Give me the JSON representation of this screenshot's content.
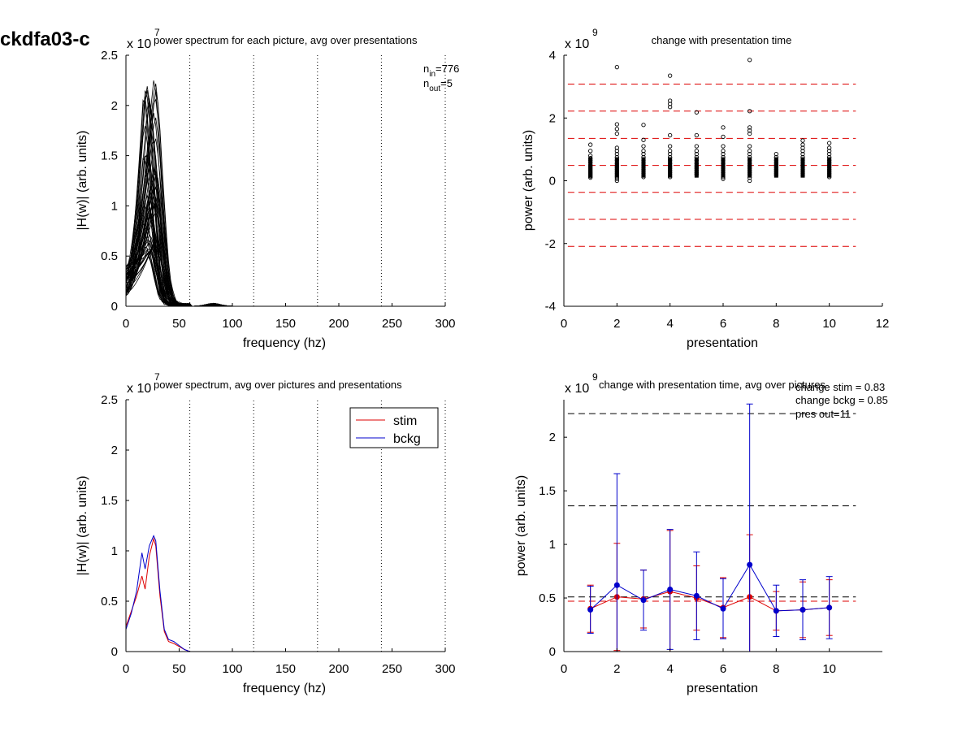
{
  "page_title": "ckdfa03-c",
  "chart_data": [
    {
      "id": "p1",
      "type": "line",
      "title": "power spectrum for each picture, avg over presentations",
      "exponent_label": "x 10",
      "exponent": "7",
      "xlabel": "frequency (hz)",
      "ylabel": "|H(w)| (arb. units)",
      "xlim": [
        0,
        300
      ],
      "ylim": [
        0,
        2.5
      ],
      "xticks": [
        "0",
        "50",
        "100",
        "150",
        "200",
        "250",
        "300"
      ],
      "yticks": [
        "0",
        "0.5",
        "1",
        "1.5",
        "2",
        "2.5"
      ],
      "vlines": [
        60,
        120,
        180,
        240,
        300
      ],
      "annotation_n_in": "n",
      "annotation_n_in_sub": "in",
      "annotation_n_in_val": "=776",
      "annotation_n_out": "n",
      "annotation_n_out_sub": "out",
      "annotation_n_out_val": "=5",
      "series_count": 60,
      "series_color": "#000000",
      "peak_range": [
        0.5,
        2.28
      ],
      "peak_freq_range": [
        16,
        28
      ]
    },
    {
      "id": "p2",
      "type": "scatter",
      "title": "change with presentation time",
      "exponent_label": "x 10",
      "exponent": "9",
      "xlabel": "presentation",
      "ylabel": "power (arb. units)",
      "xlim": [
        0,
        12
      ],
      "ylim": [
        -4,
        4
      ],
      "xticks": [
        "0",
        "2",
        "4",
        "6",
        "8",
        "10",
        "12"
      ],
      "yticks": [
        "-4",
        "-2",
        "0",
        "2",
        "4"
      ],
      "hlines": [
        3.08,
        2.22,
        1.35,
        0.49,
        -0.37,
        -1.23,
        -2.09
      ],
      "hline_color": "#dd0000",
      "points": [
        {
          "x": 1,
          "ys": [
            1.15,
            0.95,
            0.8,
            0.72,
            0.65,
            0.58,
            0.5,
            0.45,
            0.4,
            0.35,
            0.3,
            0.26,
            0.22,
            0.18,
            0.14,
            0.1
          ]
        },
        {
          "x": 2,
          "ys": [
            3.62,
            1.8,
            1.65,
            1.5,
            1.05,
            0.95,
            0.85,
            0.75,
            0.65,
            0.55,
            0.48,
            0.42,
            0.36,
            0.3,
            0.24,
            0.18,
            0.12,
            0.06,
            0.0
          ]
        },
        {
          "x": 3,
          "ys": [
            1.78,
            1.3,
            1.1,
            0.95,
            0.85,
            0.75,
            0.65,
            0.57,
            0.5,
            0.43,
            0.36,
            0.3,
            0.24,
            0.18,
            0.12
          ]
        },
        {
          "x": 4,
          "ys": [
            3.35,
            2.55,
            2.45,
            2.35,
            1.45,
            1.1,
            0.95,
            0.85,
            0.75,
            0.65,
            0.55,
            0.47,
            0.4,
            0.33,
            0.26,
            0.19,
            0.12
          ]
        },
        {
          "x": 5,
          "ys": [
            2.18,
            1.45,
            1.1,
            0.95,
            0.85,
            0.75,
            0.65,
            0.55,
            0.47,
            0.4,
            0.33,
            0.26,
            0.2
          ]
        },
        {
          "x": 6,
          "ys": [
            1.7,
            1.4,
            1.1,
            0.95,
            0.85,
            0.75,
            0.65,
            0.55,
            0.47,
            0.4,
            0.33,
            0.26,
            0.19,
            0.12,
            0.06
          ]
        },
        {
          "x": 7,
          "ys": [
            3.85,
            2.22,
            1.7,
            1.6,
            1.5,
            1.1,
            0.95,
            0.85,
            0.75,
            0.65,
            0.55,
            0.47,
            0.4,
            0.33,
            0.26,
            0.19,
            0.1,
            0.0
          ]
        },
        {
          "x": 8,
          "ys": [
            0.85,
            0.75,
            0.65,
            0.57,
            0.5,
            0.43,
            0.36,
            0.3,
            0.24,
            0.18
          ]
        },
        {
          "x": 9,
          "ys": [
            1.28,
            1.15,
            1.05,
            0.95,
            0.85,
            0.75,
            0.65,
            0.57,
            0.5,
            0.43,
            0.36,
            0.3,
            0.24,
            0.18
          ]
        },
        {
          "x": 10,
          "ys": [
            1.2,
            1.05,
            0.95,
            0.85,
            0.75,
            0.65,
            0.57,
            0.5,
            0.43,
            0.36,
            0.3,
            0.24,
            0.18,
            0.12
          ]
        }
      ]
    },
    {
      "id": "p3",
      "type": "line",
      "title": "power spectrum, avg over pictures and presentations",
      "exponent_label": "x 10",
      "exponent": "7",
      "xlabel": "frequency (hz)",
      "ylabel": "|H(w)| (arb. units)",
      "xlim": [
        0,
        300
      ],
      "ylim": [
        0,
        2.5
      ],
      "xticks": [
        "0",
        "50",
        "100",
        "150",
        "200",
        "250",
        "300"
      ],
      "yticks": [
        "0",
        "0.5",
        "1",
        "1.5",
        "2",
        "2.5"
      ],
      "vlines": [
        60,
        120,
        180,
        240,
        300
      ],
      "legend_position": "top-right",
      "series": [
        {
          "name": "stim",
          "color": "#dd0000",
          "x": [
            0,
            5,
            10,
            15,
            18,
            22,
            26,
            28,
            32,
            36,
            40,
            45,
            50,
            55,
            60,
            100,
            150,
            200,
            250,
            300
          ],
          "y": [
            0.25,
            0.4,
            0.55,
            0.75,
            0.62,
            0.95,
            1.12,
            1.05,
            0.55,
            0.2,
            0.1,
            0.08,
            0.05,
            0.02,
            0.0,
            0.0,
            0.0,
            0.0,
            0.0,
            0.0
          ]
        },
        {
          "name": "bckg",
          "color": "#0000cc",
          "x": [
            0,
            5,
            10,
            15,
            18,
            22,
            26,
            28,
            32,
            36,
            40,
            45,
            50,
            55,
            60,
            100,
            150,
            200,
            250,
            300
          ],
          "y": [
            0.22,
            0.38,
            0.6,
            0.98,
            0.82,
            1.05,
            1.15,
            1.1,
            0.6,
            0.22,
            0.12,
            0.1,
            0.06,
            0.02,
            0.0,
            0.0,
            0.0,
            0.0,
            0.0,
            0.0
          ]
        }
      ]
    },
    {
      "id": "p4",
      "type": "line",
      "title": "change with presentation time, avg over pictures",
      "exponent_label": "x 10",
      "exponent": "9",
      "xlabel": "presentation",
      "ylabel": "power (arb. units)",
      "xlim": [
        0,
        12
      ],
      "ylim": [
        0,
        2.35
      ],
      "xticks": [
        "0",
        "2",
        "4",
        "6",
        "8",
        "10"
      ],
      "yticks": [
        "0",
        "0.5",
        "1",
        "1.5",
        "2"
      ],
      "annotations": [
        "change stim = 0.83",
        "change bckg = 0.85",
        "pres out=11"
      ],
      "hlines_black": [
        2.22,
        1.36,
        0.51
      ],
      "hline_red": 0.47,
      "series": [
        {
          "name": "stim",
          "color": "#dd0000",
          "x": [
            1,
            2,
            3,
            4,
            5,
            6,
            7,
            8,
            9,
            10
          ],
          "y": [
            0.4,
            0.51,
            0.49,
            0.56,
            0.5,
            0.41,
            0.51,
            0.38,
            0.39,
            0.41
          ],
          "err": [
            0.22,
            0.5,
            0.27,
            0.57,
            0.3,
            0.28,
            0.58,
            0.18,
            0.26,
            0.26
          ]
        },
        {
          "name": "bckg",
          "color": "#0000cc",
          "x": [
            1,
            2,
            3,
            4,
            5,
            6,
            7,
            8,
            9,
            10
          ],
          "y": [
            0.39,
            0.62,
            0.48,
            0.58,
            0.52,
            0.4,
            0.81,
            0.38,
            0.39,
            0.41
          ],
          "err": [
            0.22,
            1.04,
            0.28,
            0.56,
            0.41,
            0.28,
            1.5,
            0.24,
            0.28,
            0.29
          ]
        }
      ]
    }
  ]
}
